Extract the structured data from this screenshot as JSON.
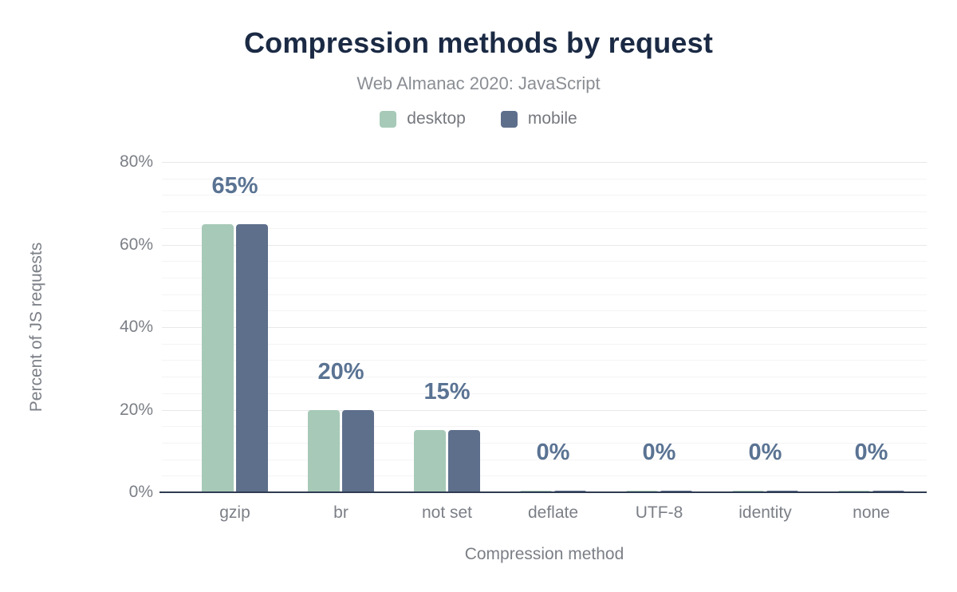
{
  "title": "Compression methods by request",
  "subtitle": "Web Almanac 2020: JavaScript",
  "legend": {
    "items": [
      {
        "label": "desktop",
        "color": "#a7c9b8"
      },
      {
        "label": "mobile",
        "color": "#5e6f8c"
      }
    ]
  },
  "colors": {
    "title": "#1b2a44",
    "subtitle_text": "#8a8e94",
    "axis_text": "#7b7f86",
    "data_label": "#5a7393",
    "axis_line": "#2f3b52",
    "major_grid": "#e8e8e8",
    "minor_grid": "#f4f4f4",
    "desktop": "#a7c9b8",
    "mobile": "#5e6f8c"
  },
  "chart_data": {
    "type": "bar",
    "title": "Compression methods by request",
    "subtitle": "Web Almanac 2020: JavaScript",
    "categories": [
      "gzip",
      "br",
      "not set",
      "deflate",
      "UTF-8",
      "identity",
      "none"
    ],
    "series": [
      {
        "name": "desktop",
        "color": "#a7c9b8",
        "values": [
          65,
          20,
          15,
          0,
          0,
          0,
          0
        ]
      },
      {
        "name": "mobile",
        "color": "#5e6f8c",
        "values": [
          65,
          20,
          15,
          0,
          0,
          0,
          0
        ]
      }
    ],
    "data_labels": [
      "65%",
      "20%",
      "15%",
      "0%",
      "0%",
      "0%",
      "0%"
    ],
    "xlabel": "Compression method",
    "ylabel": "Percent of JS requests",
    "ylim": [
      0,
      80
    ],
    "yticks": [
      {
        "value": 0,
        "label": "0%"
      },
      {
        "value": 20,
        "label": "20%"
      },
      {
        "value": 40,
        "label": "40%"
      },
      {
        "value": 60,
        "label": "60%"
      },
      {
        "value": 80,
        "label": "80%"
      }
    ],
    "minor_grid_step": 4,
    "grid": "horizontal",
    "legend_position": "top"
  }
}
